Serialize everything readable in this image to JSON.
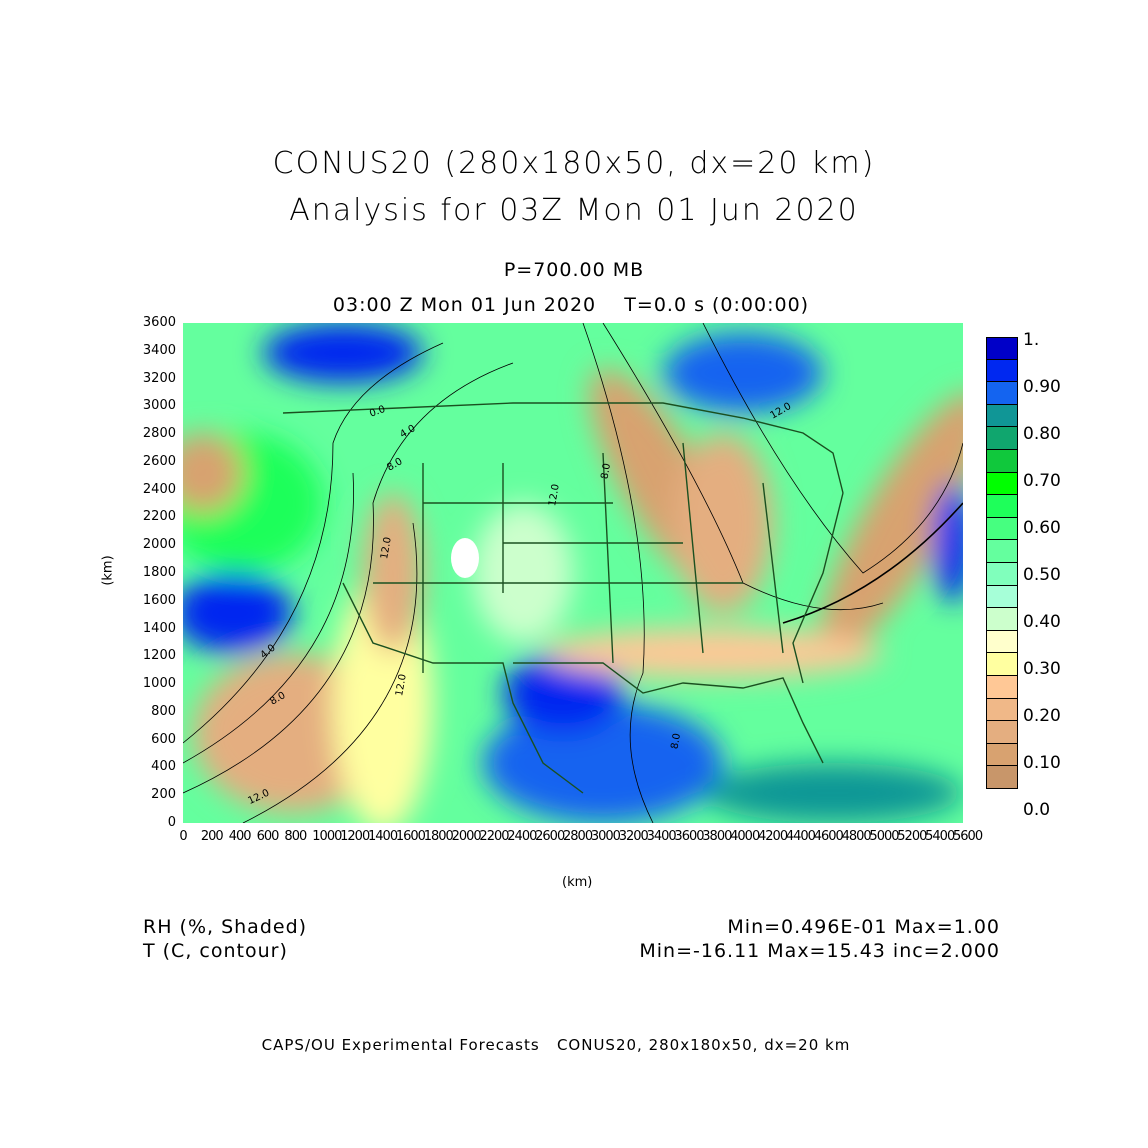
{
  "title_line1": "CONUS20 (280x180x50, dx=20 km)",
  "title_line2": "Analysis for 03Z Mon 01 Jun 2020",
  "level": "P=700.00 MB",
  "time_line": "03:00 Z Mon 01 Jun 2020    T=0.0 s (0:00:00)",
  "y_axis": {
    "label": "(km)",
    "ticks": [
      "0",
      "200",
      "400",
      "600",
      "800",
      "1000",
      "1200",
      "1400",
      "1600",
      "1800",
      "2000",
      "2200",
      "2400",
      "2600",
      "2800",
      "3000",
      "3200",
      "3400",
      "3600"
    ]
  },
  "x_axis": {
    "label": "(km)",
    "ticks": [
      "0",
      "200",
      "400",
      "600",
      "800",
      "1000",
      "1200",
      "1400",
      "1600",
      "1800",
      "2000",
      "2200",
      "2400",
      "2600",
      "2800",
      "3000",
      "3200",
      "3400",
      "3600",
      "3800",
      "4000",
      "4200",
      "4400",
      "4600",
      "4800",
      "5000",
      "5200",
      "5400",
      "5600"
    ]
  },
  "colorbar": {
    "labels": [
      "1.",
      "0.90",
      "0.80",
      "0.70",
      "0.60",
      "0.50",
      "0.40",
      "0.30",
      "0.20",
      "0.10",
      "0.0"
    ],
    "colors_top_to_bottom": [
      "#0000c8",
      "#0028f0",
      "#1464f0",
      "#109696",
      "#10a66e",
      "#10c83c",
      "#00ff00",
      "#1eff5a",
      "#46ff80",
      "#64ff9e",
      "#80ffbc",
      "#a6ffd8",
      "#ccffcc",
      "#ffffcc",
      "#ffffa0",
      "#ffc896",
      "#f0b888",
      "#e4ae80",
      "#d8a270",
      "#c8966a"
    ]
  },
  "contour_labels": [
    "12.0",
    "8.0",
    "4.0",
    "0.0",
    "8.0",
    "12.0",
    "12.0",
    "12.0",
    "8.0",
    "4.0",
    "8.0",
    "12.0"
  ],
  "field1": {
    "name": "RH (%, Shaded)",
    "stats": "Min=0.496E-01 Max=1.00"
  },
  "field2": {
    "name": "T (C, contour)",
    "stats": "Min=-16.11 Max=15.43 inc=2.000"
  },
  "footer": "CAPS/OU Experimental Forecasts   CONUS20, 280x180x50, dx=20 km"
}
